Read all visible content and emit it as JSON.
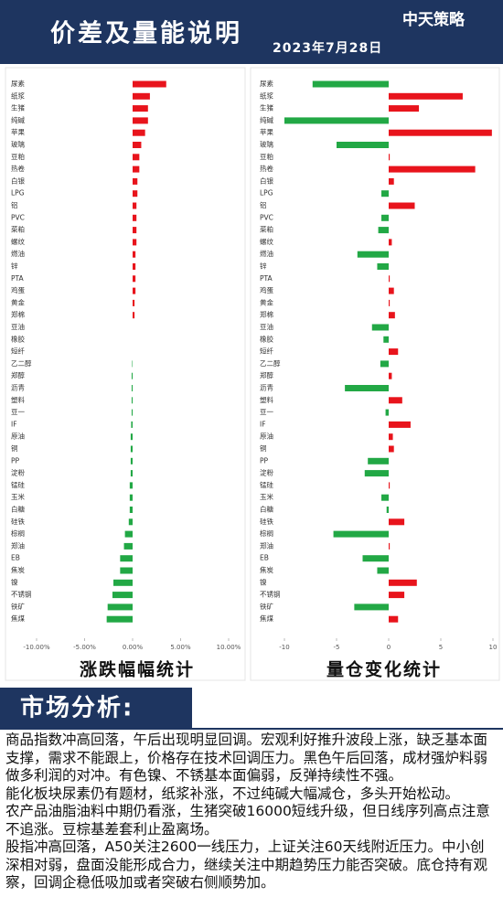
{
  "header": {
    "title": "价差及量能说明",
    "date": "2023年7月28日",
    "logo": "中天策略"
  },
  "section": {
    "title": "市场分析:"
  },
  "paragraphs": [
    "商品指数冲高回落，午后出现明显回调。宏观利好推升波段上涨，缺乏基本面支撑，需求不能跟上，价格存在技术回调压力。黑色午后回落，成材强炉料弱做多利润的对冲。有色镍、不锈基本面偏弱，反弹持续性不强。",
    "能化板块尿素仍有题材，纸浆补涨，不过纯碱大幅减仓，多头开始松动。",
    "农产品油脂油料中期仍看涨，生猪突破16000短线升级，但日线序列高点注意不追涨。豆棕基差套利止盈离场。",
    "股指冲高回落，A50关注2600一线压力，上证关注60天线附近压力。中小创深相对弱，盘面没能形成合力，继续关注中期趋势压力能否突破。底仓持有观察，回调企稳低吸加或者突破右侧顺势加。"
  ],
  "chart_data": [
    {
      "type": "bar",
      "orientation": "horizontal",
      "title": "涨跌幅幅统计",
      "categories": [
        "尿素",
        "纸浆",
        "生猪",
        "纯碱",
        "苹果",
        "玻璃",
        "豆粕",
        "热卷",
        "白银",
        "LPG",
        "铝",
        "PVC",
        "菜粕",
        "螺纹",
        "燃油",
        "锌",
        "PTA",
        "鸡蛋",
        "黄金",
        "郑棉",
        "豆油",
        "橡胶",
        "短纤",
        "乙二醇",
        "郑醇",
        "沥青",
        "塑料",
        "豆一",
        "IF",
        "原油",
        "铜",
        "PP",
        "淀粉",
        "锰硅",
        "玉米",
        "白糖",
        "硅铁",
        "棕榈",
        "郑油",
        "EB",
        "焦炭",
        "镍",
        "不锈钢",
        "铁矿",
        "焦煤"
      ],
      "values": [
        3.5,
        1.8,
        1.6,
        1.6,
        1.3,
        0.9,
        0.7,
        0.7,
        0.5,
        0.5,
        0.4,
        0.4,
        0.4,
        0.4,
        0.3,
        0.3,
        0.3,
        0.3,
        0.2,
        0.2,
        0,
        0,
        0,
        -0.05,
        -0.1,
        -0.1,
        -0.1,
        -0.1,
        -0.15,
        -0.2,
        -0.2,
        -0.2,
        -0.2,
        -0.3,
        -0.3,
        -0.3,
        -0.4,
        -0.8,
        -0.9,
        -1.3,
        -1.3,
        -2.0,
        -2.1,
        -2.6,
        -2.7
      ],
      "positive_color": "#e8141c",
      "negative_color": "#22a845",
      "xlim": [
        -10,
        10
      ],
      "xticks": [
        {
          "value": -10,
          "label": "-10.00%"
        },
        {
          "value": -5,
          "label": "-5.00%"
        },
        {
          "value": 0,
          "label": "0.00%"
        },
        {
          "value": 5,
          "label": "5.00%"
        },
        {
          "value": 10,
          "label": "10.00%"
        }
      ]
    },
    {
      "type": "bar",
      "orientation": "horizontal",
      "title": "量仓变化统计",
      "categories": [
        "尿素",
        "纸浆",
        "生猪",
        "纯碱",
        "苹果",
        "玻璃",
        "豆粕",
        "热卷",
        "白银",
        "LPG",
        "铝",
        "PVC",
        "菜粕",
        "螺纹",
        "燃油",
        "锌",
        "PTA",
        "鸡蛋",
        "黄金",
        "郑棉",
        "豆油",
        "橡胶",
        "短纤",
        "乙二醇",
        "郑醇",
        "沥青",
        "塑料",
        "豆一",
        "IF",
        "原油",
        "铜",
        "PP",
        "淀粉",
        "锰硅",
        "玉米",
        "白糖",
        "硅铁",
        "棕榈",
        "郑油",
        "EB",
        "焦炭",
        "镍",
        "不锈钢",
        "铁矿",
        "焦煤"
      ],
      "values": [
        -7.3,
        7.1,
        2.9,
        -10,
        9.9,
        -5.0,
        0.1,
        8.3,
        0.5,
        -0.7,
        2.5,
        -0.7,
        -1.0,
        0.3,
        -3.0,
        -1.1,
        0.1,
        0.5,
        0.1,
        0.6,
        -1.6,
        -0.5,
        0.9,
        -0.8,
        0.3,
        -4.2,
        1.3,
        -0.3,
        2.1,
        0.4,
        0.5,
        -2.0,
        -2.3,
        0.1,
        -0.7,
        -0.2,
        1.5,
        -5.3,
        0.1,
        -2.5,
        -1.1,
        2.7,
        1.5,
        -3.3,
        0.9
      ],
      "positive_color": "#e8141c",
      "negative_color": "#22a845",
      "xlim": [
        -10,
        10
      ],
      "xticks": [
        -10,
        -5,
        0,
        5,
        10
      ]
    }
  ]
}
